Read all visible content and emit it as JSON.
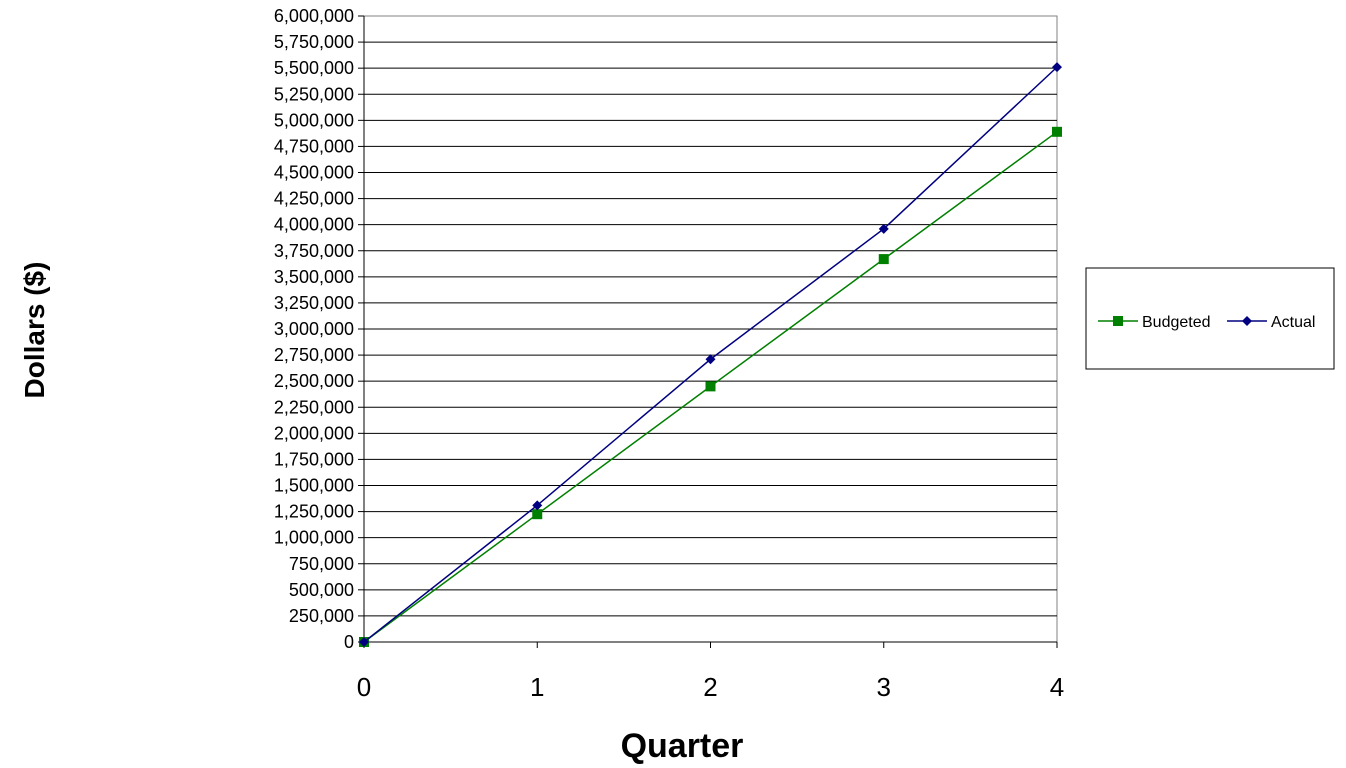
{
  "chart_data": {
    "type": "line",
    "title": "",
    "xlabel": "Quarter",
    "ylabel": "Dollars ($)",
    "x": [
      0,
      1,
      2,
      3,
      4
    ],
    "xlim": [
      0,
      4
    ],
    "x_ticks": [
      "0",
      "1",
      "2",
      "3",
      "4"
    ],
    "ylim": [
      0,
      6000000
    ],
    "y_ticks": [
      0,
      250000,
      500000,
      750000,
      1000000,
      1250000,
      1500000,
      1750000,
      2000000,
      2250000,
      2500000,
      2750000,
      3000000,
      3250000,
      3500000,
      3750000,
      4000000,
      4250000,
      4500000,
      4750000,
      5000000,
      5250000,
      5500000,
      5750000,
      6000000
    ],
    "y_tick_labels": [
      "0",
      "250,000",
      "500,000",
      "750,000",
      "1,000,000",
      "1,250,000",
      "1,500,000",
      "1,750,000",
      "2,000,000",
      "2,250,000",
      "2,500,000",
      "2,750,000",
      "3,000,000",
      "3,250,000",
      "3,500,000",
      "3,750,000",
      "4,000,000",
      "4,250,000",
      "4,500,000",
      "4,750,000",
      "5,000,000",
      "5,250,000",
      "5,500,000",
      "5,750,000",
      "6,000,000"
    ],
    "grid": "horizontal",
    "legend_position": "right",
    "series": [
      {
        "name": "Budgeted",
        "color": "#008000",
        "marker": "square",
        "values": [
          0,
          1225000,
          2450000,
          3670000,
          4890000
        ]
      },
      {
        "name": "Actual",
        "color": "#000080",
        "marker": "diamond",
        "values": [
          0,
          1310000,
          2710000,
          3960000,
          5510000
        ]
      }
    ]
  }
}
